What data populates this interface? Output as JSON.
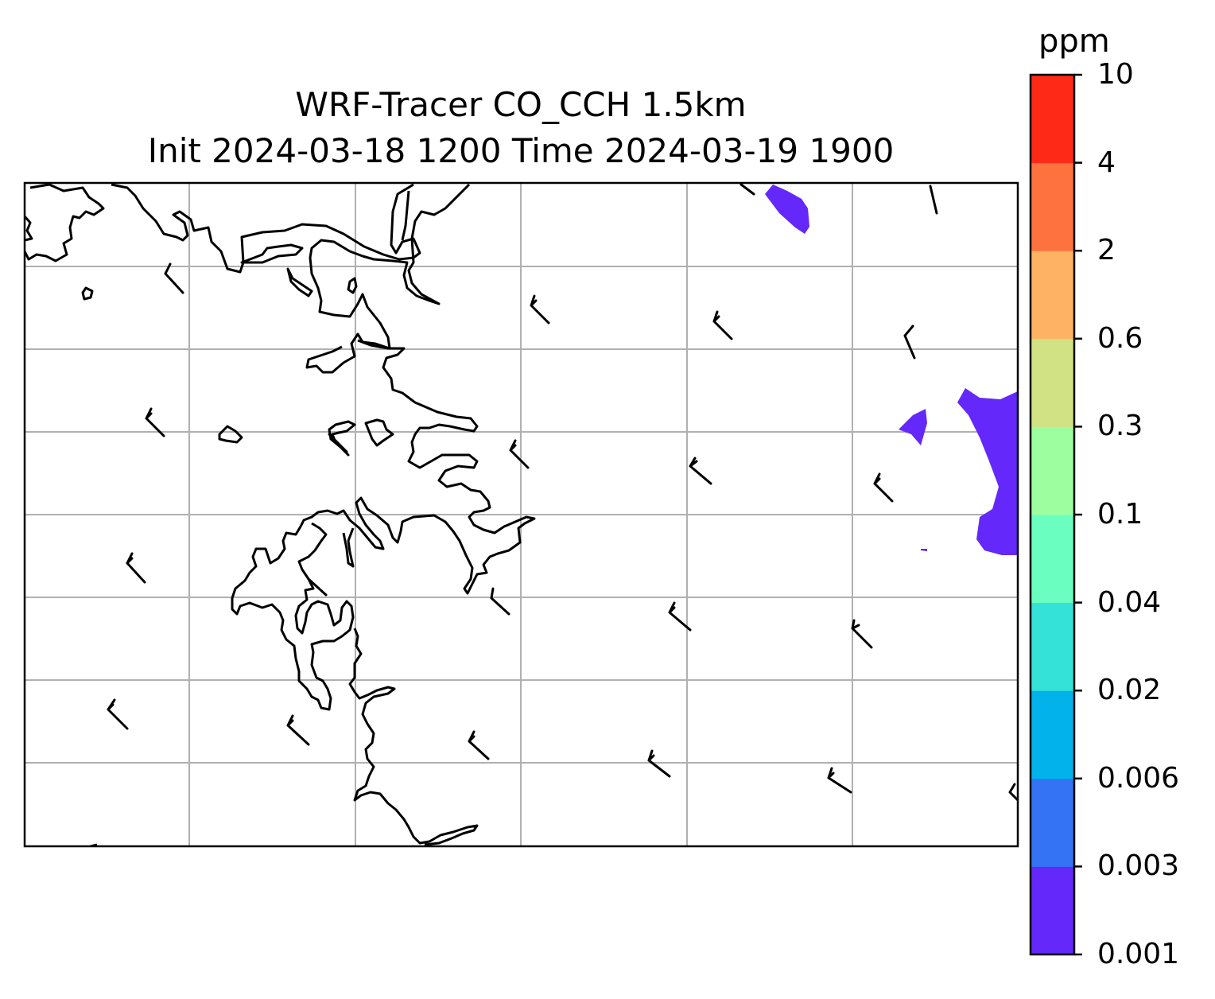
{
  "title": {
    "line1": "WRF-Tracer CO_CCH 1.5km",
    "line2": "Init 2024-03-18 1200 Time 2024-03-19 1900"
  },
  "colorbar": {
    "unit": "ppm",
    "levels": [
      "0.001",
      "0.003",
      "0.006",
      "0.02",
      "0.04",
      "0.1",
      "0.3",
      "0.6",
      "2",
      "4",
      "10"
    ],
    "colors": [
      "#6428fa",
      "#3473f4",
      "#02b3eb",
      "#34e2d8",
      "#6afec0",
      "#9dfea0",
      "#d0e283",
      "#feb264",
      "#fe7240",
      "#fe2a17"
    ]
  },
  "map": {
    "tracer_fill_color": "#6428fa",
    "coastline_color": "#000000",
    "gridline_color": "#b0b0b0"
  }
}
